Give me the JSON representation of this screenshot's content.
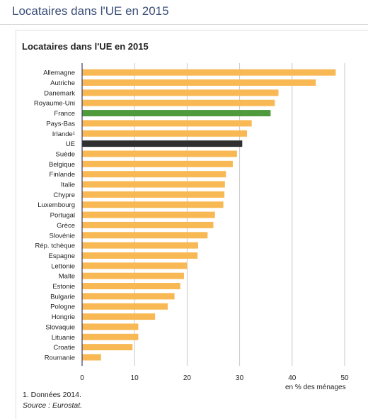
{
  "page": {
    "title": "Locataires dans l'UE en 2015"
  },
  "chart_data": {
    "type": "bar",
    "orientation": "horizontal",
    "title": "Locataires dans l'UE en 2015",
    "xlabel": "en % des ménages",
    "ylabel": "",
    "xlim": [
      0,
      50
    ],
    "xticks": [
      0,
      10,
      20,
      30,
      40,
      50
    ],
    "grid": true,
    "categories": [
      "Allemagne",
      "Autriche",
      "Danemark",
      "Royaume-Uni",
      "France",
      "Pays-Bas",
      "Irlande¹",
      "UE",
      "Suède",
      "Belgique",
      "Finlande",
      "Italie",
      "Chypre",
      "Luxembourg",
      "Portugal",
      "Grèce",
      "Slovénie",
      "Rép. tchèque",
      "Espagne",
      "Lettonie",
      "Malte",
      "Estonie",
      "Bulgarie",
      "Pologne",
      "Hongrie",
      "Slovaquie",
      "Lituanie",
      "Croatie",
      "Roumanie"
    ],
    "values": [
      48.3,
      44.5,
      37.4,
      36.7,
      35.9,
      32.3,
      31.4,
      30.5,
      29.5,
      28.7,
      27.4,
      27.2,
      27.1,
      26.9,
      25.3,
      25.0,
      23.9,
      22.1,
      22.0,
      20.0,
      19.4,
      18.7,
      17.6,
      16.3,
      13.9,
      10.7,
      10.7,
      9.6,
      3.6
    ],
    "colors": {
      "default": "#f8b955",
      "France": "#4e9a3c",
      "UE": "#2f2f2f"
    },
    "footnote": "1. Données 2014.",
    "source": "Source : Eurostat."
  }
}
